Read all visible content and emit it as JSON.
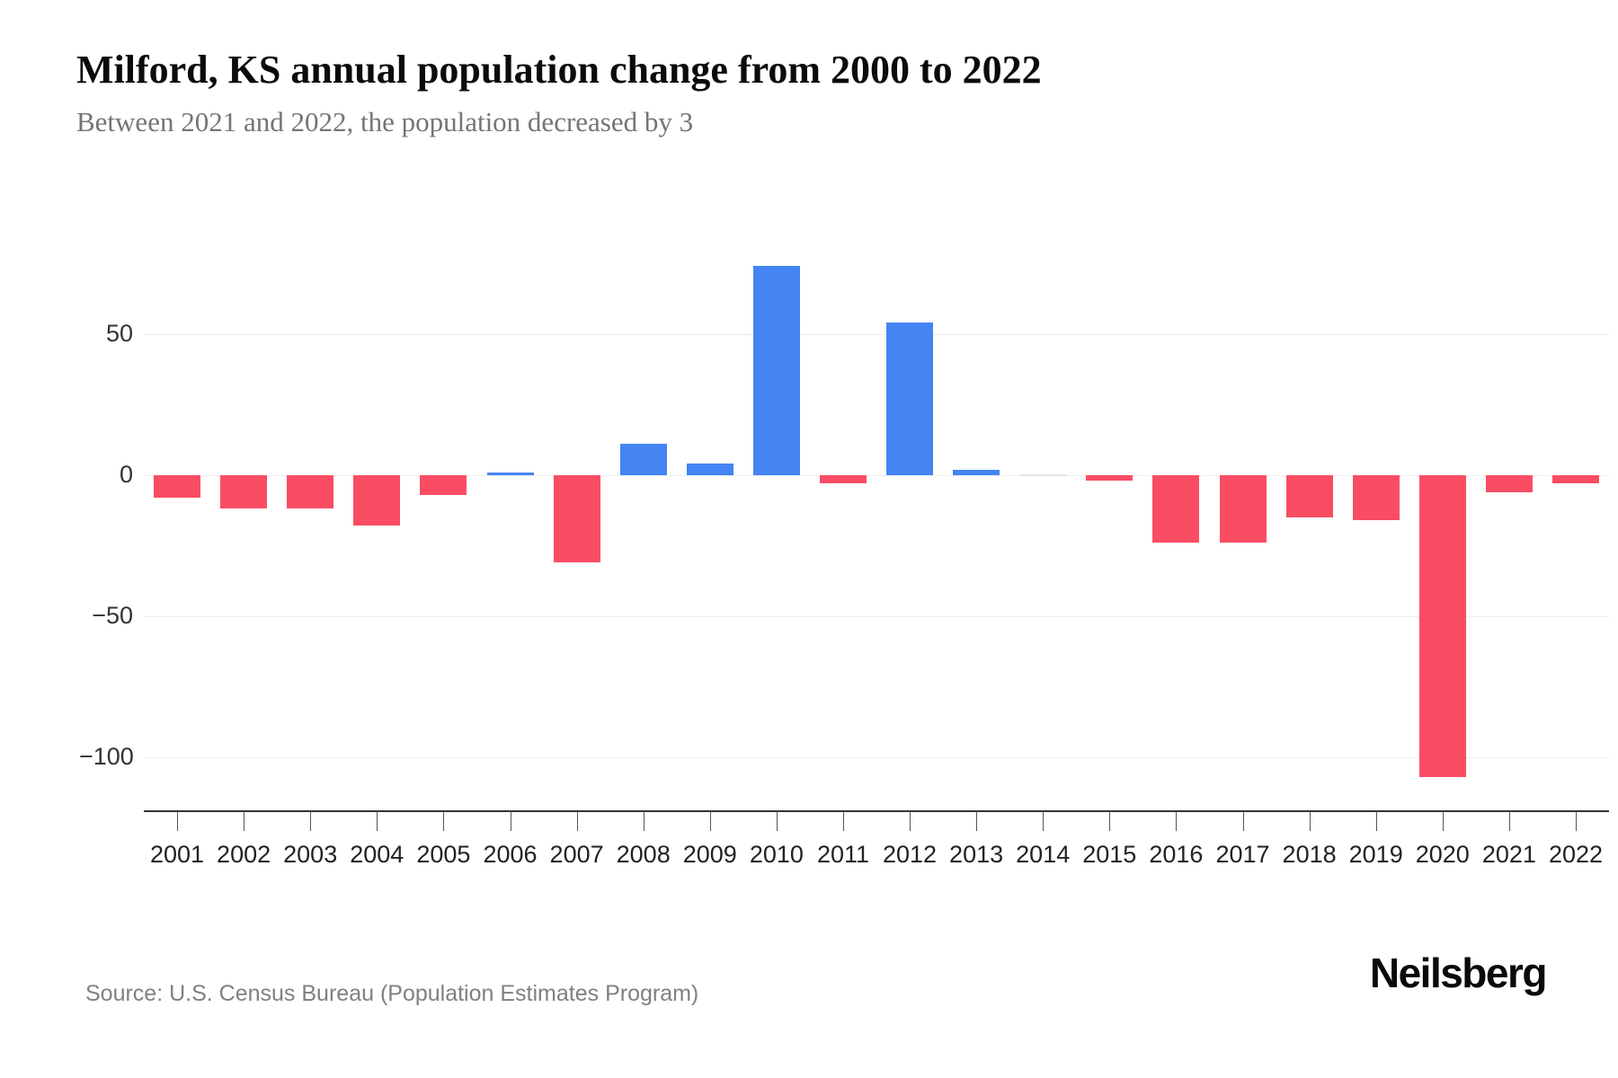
{
  "header": {
    "title": "Milford, KS annual population change from 2000 to 2022",
    "subtitle": "Between 2021 and 2022, the population decreased by 3"
  },
  "footer": {
    "source": "Source: U.S. Census Bureau (Population Estimates Program)",
    "brand": "Neilsberg"
  },
  "colors": {
    "positive_bar": "#4484F3",
    "negative_bar": "#FA4D64",
    "zero_bar": "#E4E4E4",
    "gridline": "#EDEDED",
    "axis_line": "#333333",
    "tick_mark": "#555555",
    "x_label": "#222222",
    "y_label": "#333333"
  },
  "chart_data": {
    "type": "bar",
    "title": "Milford, KS annual population change from 2000 to 2022",
    "subtitle": "Between 2021 and 2022, the population decreased by 3",
    "xlabel": "",
    "ylabel": "",
    "categories": [
      "2001",
      "2002",
      "2003",
      "2004",
      "2005",
      "2006",
      "2007",
      "2008",
      "2009",
      "2010",
      "2011",
      "2012",
      "2013",
      "2014",
      "2015",
      "2016",
      "2017",
      "2018",
      "2019",
      "2020",
      "2021",
      "2022"
    ],
    "values": [
      -8,
      -12,
      -12,
      -18,
      -7,
      1,
      -31,
      11,
      4,
      74,
      -3,
      54,
      2,
      0,
      -2,
      -24,
      -24,
      -15,
      -16,
      -107,
      -6,
      -3
    ],
    "ylim": [
      -119,
      95
    ],
    "yticks": [
      50,
      0,
      -50,
      -100
    ],
    "ytick_labels": [
      "50",
      "0",
      "−50",
      "−100"
    ],
    "grid": true,
    "legend_position": "none"
  }
}
